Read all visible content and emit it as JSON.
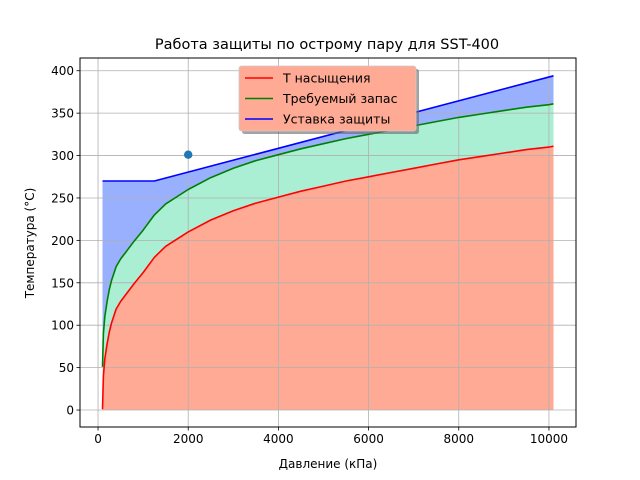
{
  "chart_data": {
    "type": "line",
    "title": "Работа защиты по острому пару для SST-400",
    "xlabel": "Давление (кПа)",
    "ylabel": "Температура (°C)",
    "xlim": [
      -400,
      10600
    ],
    "ylim": [
      -20,
      415
    ],
    "xticks": [
      0,
      2000,
      4000,
      6000,
      8000,
      10000
    ],
    "yticks": [
      0,
      50,
      100,
      150,
      200,
      250,
      300,
      350,
      400
    ],
    "grid": true,
    "legend_position": "upper center",
    "series": [
      {
        "name": "Т насыщения",
        "color": "#ff0000",
        "fill": "#ffaa95",
        "x": [
          100,
          120,
          150,
          200,
          250,
          300,
          400,
          500,
          600,
          800,
          1000,
          1250,
          1500,
          2000,
          2500,
          3000,
          3500,
          4000,
          4500,
          5000,
          5500,
          6000,
          6500,
          7000,
          7500,
          8000,
          8500,
          9000,
          9500,
          10000,
          10100
        ],
        "y": [
          1,
          40,
          60,
          78,
          92,
          103,
          119,
          128,
          135,
          149,
          162,
          180,
          193,
          210,
          224,
          235,
          244,
          251,
          258,
          264,
          270,
          275,
          280,
          285,
          290,
          295,
          299,
          303,
          307,
          310,
          311
        ]
      },
      {
        "name": "Требуемый запас",
        "color": "#008000",
        "fill": "#aaeed4",
        "x": [
          100,
          120,
          150,
          200,
          250,
          300,
          400,
          500,
          600,
          800,
          1000,
          1250,
          1500,
          2000,
          2500,
          3000,
          3500,
          4000,
          4500,
          5000,
          5500,
          6000,
          6500,
          7000,
          7500,
          8000,
          8500,
          9000,
          9500,
          10000,
          10100
        ],
        "y": [
          51,
          90,
          110,
          128,
          142,
          153,
          169,
          178,
          185,
          199,
          212,
          230,
          243,
          260,
          274,
          285,
          294,
          301,
          308,
          314,
          320,
          325,
          330,
          335,
          340,
          345,
          349,
          353,
          357,
          360,
          361
        ]
      },
      {
        "name": "Уставка защиты",
        "color": "#0000ff",
        "fill": "#99b0ff",
        "x": [
          100,
          1250,
          10100
        ],
        "y": [
          270,
          270,
          394
        ]
      }
    ],
    "points": [
      {
        "x": 2000,
        "y": 301,
        "color": "#1f77b4"
      }
    ]
  }
}
